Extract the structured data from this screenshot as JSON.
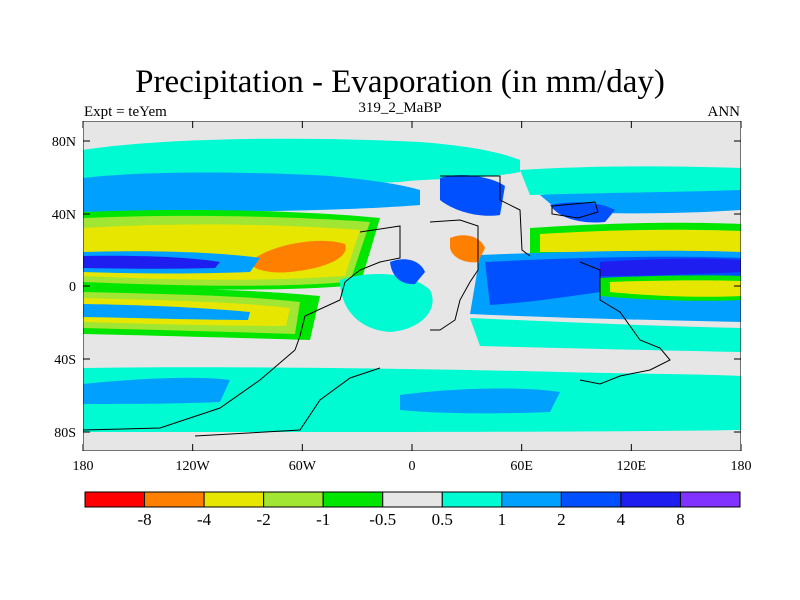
{
  "title": "Precipitation - Evaporation (in mm/day)",
  "subtitle": "319_2_MaBP",
  "left_label": "Expt = teYem",
  "right_label": "ANN",
  "lon_ticks": [
    "180",
    "120W",
    "60W",
    "0",
    "60E",
    "120E",
    "180"
  ],
  "lat_ticks": [
    "80N",
    "40N",
    "0",
    "40S",
    "80S"
  ],
  "colorbar": {
    "colors": [
      "#ff0000",
      "#ff8000",
      "#e6e600",
      "#a0e632",
      "#00e600",
      "#e6e6e6",
      "#00fad2",
      "#00a0ff",
      "#0050ff",
      "#1e1ef0",
      "#8232ff"
    ],
    "labels": [
      "-8",
      "-4",
      "-2",
      "-1",
      "-0.5",
      "0.5",
      "1",
      "2",
      "4",
      "8"
    ]
  },
  "colors": {
    "background": "#e6e6e6",
    "coast": "#000000"
  }
}
